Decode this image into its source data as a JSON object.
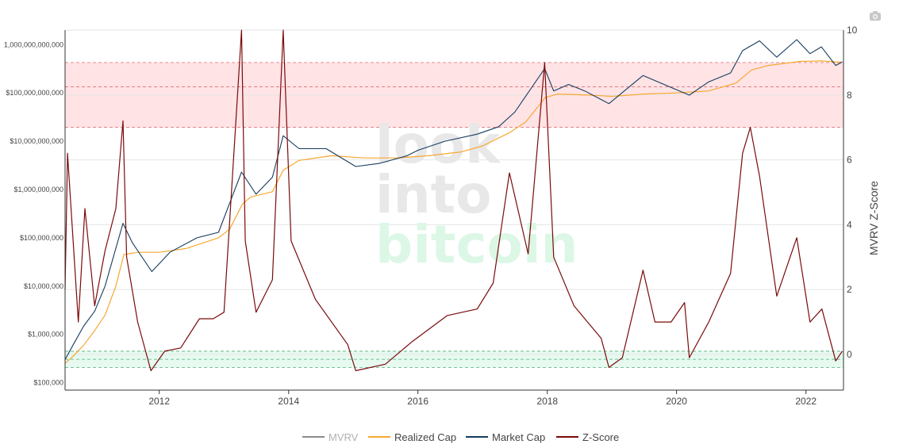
{
  "chart_data": {
    "type": "line",
    "title": "",
    "watermark": [
      "look",
      "into",
      "bitcoin"
    ],
    "xlabel": "",
    "x_range": [
      "2010-07-18",
      "2022-08-01"
    ],
    "x_ticks": [
      "2012",
      "2014",
      "2016",
      "2018",
      "2020",
      "2022"
    ],
    "y_left": {
      "scale": "log",
      "range": [
        70000,
        2000000000000
      ],
      "ticks": [
        {
          "value": 100000,
          "label": "$100,000"
        },
        {
          "value": 1000000,
          "label": "$1,000,000"
        },
        {
          "value": 10000000,
          "label": "$10,000,000"
        },
        {
          "value": 100000000,
          "label": "$100,000,000"
        },
        {
          "value": 1000000000,
          "label": "$1,000,000,000"
        },
        {
          "value": 10000000000,
          "label": "$10,000,000,000"
        },
        {
          "value": 100000000000,
          "label": "$100,000,000,000"
        },
        {
          "value": 1000000000000,
          "label": "1,000,000,000,000"
        }
      ]
    },
    "y_right": {
      "label": "MVRV Z-Score",
      "range": [
        -1.1,
        10
      ],
      "ticks": [
        {
          "value": 0,
          "label": "0"
        },
        {
          "value": 2,
          "label": "2"
        },
        {
          "value": 4,
          "label": "4"
        },
        {
          "value": 6,
          "label": "6"
        },
        {
          "value": 8,
          "label": "8"
        },
        {
          "value": 10,
          "label": "10"
        }
      ]
    },
    "bands": [
      {
        "zone": "overvalued",
        "axis": "right",
        "range": [
          7,
          9
        ],
        "mid": 8.25,
        "color": "#ffcccf"
      },
      {
        "zone": "undervalued",
        "axis": "right",
        "range": [
          -0.4,
          0.1
        ],
        "mid": -0.15,
        "color": "#d4f5e4"
      }
    ],
    "legend_position": "bottom-center",
    "series": [
      {
        "name": "MVRV",
        "axis": "left",
        "color": "#8c8c8c",
        "points": []
      },
      {
        "name": "Realized Cap",
        "axis": "left",
        "color": "#f7a832",
        "points": [
          [
            "2010-07-18",
            250000
          ],
          [
            "2010-09-01",
            350000
          ],
          [
            "2010-11-01",
            600000
          ],
          [
            "2011-01-01",
            1200000
          ],
          [
            "2011-03-01",
            2500000
          ],
          [
            "2011-05-01",
            10000000
          ],
          [
            "2011-06-15",
            45000000
          ],
          [
            "2011-09-01",
            50000000
          ],
          [
            "2012-01-01",
            50000000
          ],
          [
            "2012-06-01",
            60000000
          ],
          [
            "2012-12-01",
            100000000
          ],
          [
            "2013-02-01",
            150000000
          ],
          [
            "2013-04-15",
            500000000
          ],
          [
            "2013-06-01",
            700000000
          ],
          [
            "2013-10-01",
            900000000
          ],
          [
            "2013-12-01",
            2500000000
          ],
          [
            "2014-03-01",
            4000000000
          ],
          [
            "2014-09-01",
            5000000000
          ],
          [
            "2015-03-01",
            4500000000
          ],
          [
            "2015-09-01",
            4500000000
          ],
          [
            "2016-03-01",
            5000000000
          ],
          [
            "2016-09-01",
            6000000000
          ],
          [
            "2017-01-01",
            8000000000
          ],
          [
            "2017-06-01",
            15000000000
          ],
          [
            "2017-09-01",
            25000000000
          ],
          [
            "2017-12-20",
            80000000000
          ],
          [
            "2018-03-01",
            95000000000
          ],
          [
            "2018-09-01",
            90000000000
          ],
          [
            "2019-01-01",
            85000000000
          ],
          [
            "2019-07-01",
            95000000000
          ],
          [
            "2020-01-01",
            100000000000
          ],
          [
            "2020-07-01",
            110000000000
          ],
          [
            "2020-12-01",
            160000000000
          ],
          [
            "2021-03-01",
            300000000000
          ],
          [
            "2021-06-01",
            370000000000
          ],
          [
            "2021-12-01",
            450000000000
          ],
          [
            "2022-04-01",
            460000000000
          ],
          [
            "2022-07-25",
            430000000000
          ]
        ]
      },
      {
        "name": "Market Cap",
        "axis": "left",
        "color": "#163c5e",
        "points": [
          [
            "2010-07-18",
            300000
          ],
          [
            "2010-09-01",
            600000
          ],
          [
            "2010-11-01",
            1500000
          ],
          [
            "2011-01-01",
            3000000
          ],
          [
            "2011-03-01",
            10000000
          ],
          [
            "2011-06-10",
            200000000
          ],
          [
            "2011-08-01",
            80000000
          ],
          [
            "2011-11-20",
            20000000
          ],
          [
            "2012-03-01",
            50000000
          ],
          [
            "2012-08-01",
            100000000
          ],
          [
            "2012-12-01",
            130000000
          ],
          [
            "2013-04-10",
            2300000000
          ],
          [
            "2013-07-01",
            800000000
          ],
          [
            "2013-10-01",
            1800000000
          ],
          [
            "2013-12-01",
            13000000000
          ],
          [
            "2014-03-01",
            7000000000
          ],
          [
            "2014-08-01",
            7000000000
          ],
          [
            "2015-01-15",
            3000000000
          ],
          [
            "2015-06-01",
            3500000000
          ],
          [
            "2015-11-01",
            5000000000
          ],
          [
            "2016-01-01",
            6500000000
          ],
          [
            "2016-06-01",
            10000000000
          ],
          [
            "2016-12-01",
            14000000000
          ],
          [
            "2017-04-01",
            20000000000
          ],
          [
            "2017-07-01",
            40000000000
          ],
          [
            "2017-12-17",
            320000000000
          ],
          [
            "2018-02-06",
            110000000000
          ],
          [
            "2018-05-01",
            150000000000
          ],
          [
            "2018-08-01",
            110000000000
          ],
          [
            "2018-12-15",
            60000000000
          ],
          [
            "2019-06-26",
            230000000000
          ],
          [
            "2019-12-01",
            130000000000
          ],
          [
            "2020-03-13",
            90000000000
          ],
          [
            "2020-07-01",
            170000000000
          ],
          [
            "2020-11-01",
            260000000000
          ],
          [
            "2021-01-08",
            750000000000
          ],
          [
            "2021-04-14",
            1200000000000
          ],
          [
            "2021-07-20",
            550000000000
          ],
          [
            "2021-11-10",
            1270000000000
          ],
          [
            "2022-01-24",
            650000000000
          ],
          [
            "2022-03-29",
            900000000000
          ],
          [
            "2022-06-18",
            370000000000
          ],
          [
            "2022-07-25",
            440000000000
          ]
        ]
      },
      {
        "name": "Z-Score",
        "axis": "right",
        "color": "#7a0a0a",
        "points": [
          [
            "2010-07-18",
            2.0
          ],
          [
            "2010-08-01",
            6.2
          ],
          [
            "2010-10-01",
            1.0
          ],
          [
            "2010-11-07",
            4.5
          ],
          [
            "2011-01-01",
            1.5
          ],
          [
            "2011-03-01",
            3.2
          ],
          [
            "2011-05-01",
            4.5
          ],
          [
            "2011-06-10",
            7.2
          ],
          [
            "2011-07-01",
            3.0
          ],
          [
            "2011-09-01",
            1.0
          ],
          [
            "2011-11-15",
            -0.5
          ],
          [
            "2012-02-01",
            0.1
          ],
          [
            "2012-05-01",
            0.2
          ],
          [
            "2012-08-15",
            1.1
          ],
          [
            "2012-11-01",
            1.1
          ],
          [
            "2013-01-01",
            1.3
          ],
          [
            "2013-04-10",
            10.0
          ],
          [
            "2013-05-01",
            3.5
          ],
          [
            "2013-07-01",
            1.3
          ],
          [
            "2013-10-01",
            2.3
          ],
          [
            "2013-12-01",
            10.0
          ],
          [
            "2014-01-15",
            3.5
          ],
          [
            "2014-06-01",
            1.7
          ],
          [
            "2014-12-01",
            0.3
          ],
          [
            "2015-01-15",
            -0.5
          ],
          [
            "2015-07-01",
            -0.3
          ],
          [
            "2015-12-01",
            0.4
          ],
          [
            "2016-06-15",
            1.2
          ],
          [
            "2016-12-01",
            1.4
          ],
          [
            "2017-03-01",
            2.2
          ],
          [
            "2017-06-01",
            5.6
          ],
          [
            "2017-09-15",
            3.1
          ],
          [
            "2017-12-17",
            9.0
          ],
          [
            "2018-02-06",
            3.0
          ],
          [
            "2018-06-01",
            1.5
          ],
          [
            "2018-11-01",
            0.5
          ],
          [
            "2018-12-15",
            -0.4
          ],
          [
            "2019-03-01",
            -0.1
          ],
          [
            "2019-06-26",
            2.6
          ],
          [
            "2019-09-01",
            1.0
          ],
          [
            "2019-12-01",
            1.0
          ],
          [
            "2020-02-15",
            1.6
          ],
          [
            "2020-03-13",
            -0.1
          ],
          [
            "2020-07-01",
            1.0
          ],
          [
            "2020-11-01",
            2.5
          ],
          [
            "2021-01-08",
            6.2
          ],
          [
            "2021-02-21",
            7.0
          ],
          [
            "2021-04-14",
            5.5
          ],
          [
            "2021-07-20",
            1.8
          ],
          [
            "2021-11-10",
            3.6
          ],
          [
            "2022-01-24",
            1.0
          ],
          [
            "2022-04-01",
            1.4
          ],
          [
            "2022-06-18",
            -0.2
          ],
          [
            "2022-07-25",
            0.1
          ]
        ]
      }
    ]
  }
}
